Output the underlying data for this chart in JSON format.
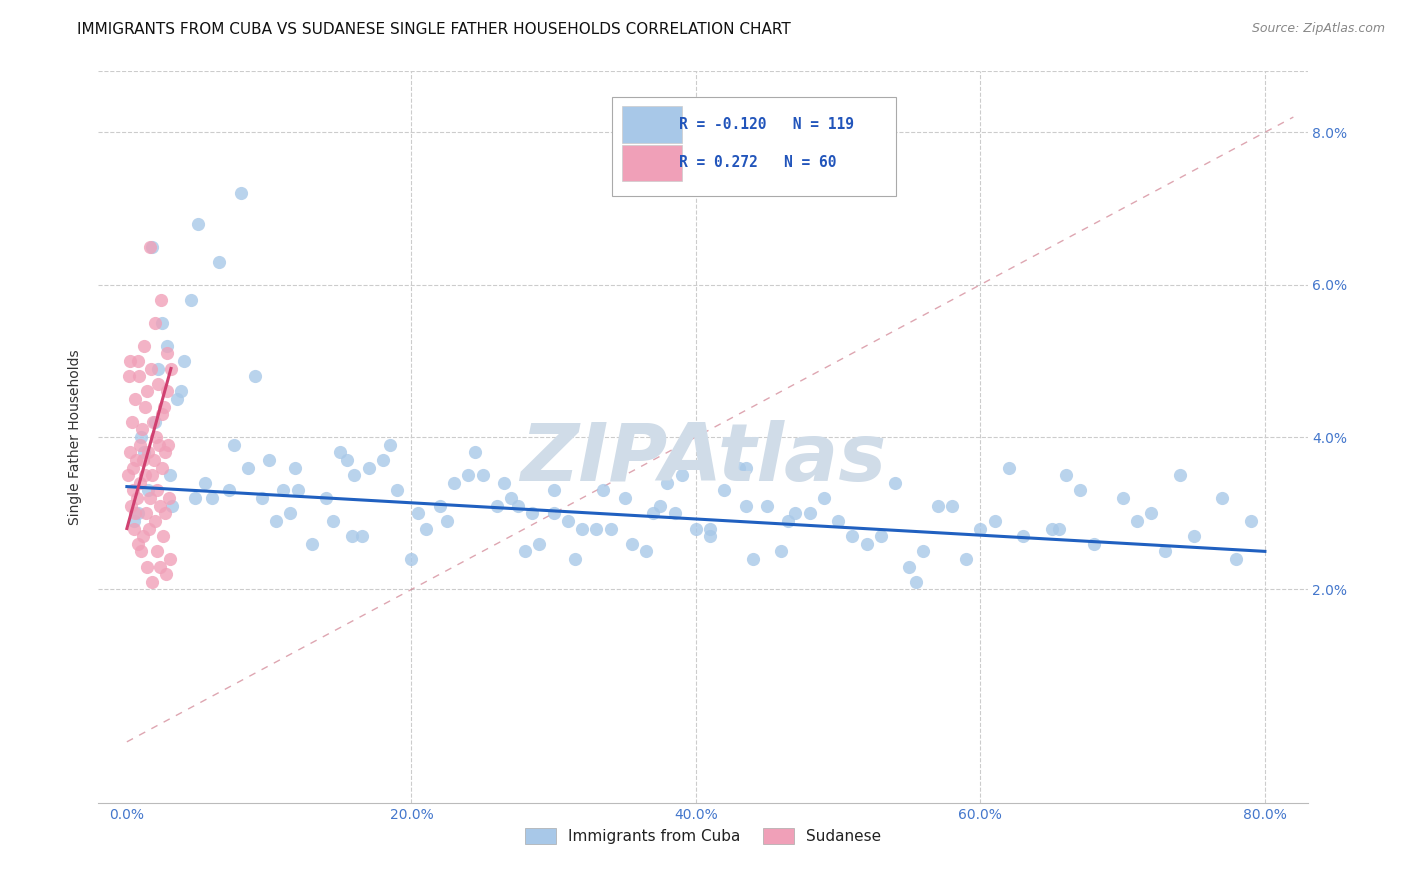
{
  "title": "IMMIGRANTS FROM CUBA VS SUDANESE SINGLE FATHER HOUSEHOLDS CORRELATION CHART",
  "source": "Source: ZipAtlas.com",
  "ylabel": "Single Father Households",
  "x_tick_labels": [
    "0.0%",
    "20.0%",
    "40.0%",
    "60.0%",
    "80.0%"
  ],
  "x_tick_vals": [
    0.0,
    20.0,
    40.0,
    60.0,
    80.0
  ],
  "y_tick_labels": [
    "2.0%",
    "4.0%",
    "6.0%",
    "8.0%"
  ],
  "y_tick_vals": [
    2.0,
    4.0,
    6.0,
    8.0
  ],
  "xlim": [
    -2.0,
    83.0
  ],
  "ylim": [
    -0.8,
    8.8
  ],
  "legend_labels": [
    "Immigrants from Cuba",
    "Sudanese"
  ],
  "legend_r_vals": [
    "-0.120",
    "0.272"
  ],
  "legend_n_vals": [
    "119",
    "60"
  ],
  "blue_color": "#a8c8e8",
  "pink_color": "#f0a0b8",
  "blue_line_color": "#2060c0",
  "pink_line_color": "#d04070",
  "diag_line_color": "#d08090",
  "title_fontsize": 11,
  "watermark_text": "ZIPAtlas",
  "watermark_color": "#d0dce8",
  "blue_scatter_x": [
    1.5,
    2.5,
    3.5,
    5.0,
    8.0,
    0.8,
    1.2,
    2.0,
    3.0,
    4.5,
    6.5,
    9.0,
    1.8,
    2.8,
    4.0,
    5.5,
    7.5,
    10.0,
    0.5,
    1.0,
    2.2,
    3.8,
    6.0,
    8.5,
    11.0,
    13.0,
    15.0,
    12.0,
    17.0,
    10.5,
    14.0,
    18.0,
    20.0,
    11.5,
    22.0,
    16.5,
    24.0,
    14.5,
    19.0,
    21.0,
    25.0,
    27.0,
    30.0,
    23.0,
    32.0,
    15.5,
    18.5,
    26.0,
    28.0,
    33.0,
    35.0,
    38.0,
    41.0,
    30.0,
    43.0,
    31.0,
    37.0,
    39.0,
    45.0,
    29.0,
    34.0,
    42.0,
    47.0,
    50.0,
    44.0,
    37.5,
    53.0,
    49.0,
    56.0,
    41.0,
    58.0,
    52.0,
    61.0,
    55.0,
    63.0,
    46.0,
    65.0,
    59.0,
    68.0,
    71.0,
    73.0,
    75.0,
    78.0,
    62.0,
    65.5,
    67.0,
    72.0,
    74.0,
    77.0,
    79.0,
    54.0,
    57.0,
    60.0,
    66.0,
    70.0,
    55.5,
    48.0,
    51.0,
    43.5,
    40.0,
    3.2,
    4.8,
    7.2,
    16.0,
    20.5,
    35.5,
    22.5,
    26.5,
    15.8,
    33.5,
    11.8,
    24.5,
    28.5,
    36.5,
    9.5,
    46.5,
    31.5,
    43.5,
    38.5,
    27.5
  ],
  "blue_scatter_y": [
    3.3,
    5.5,
    4.5,
    6.8,
    7.2,
    3.0,
    3.8,
    4.2,
    3.5,
    5.8,
    6.3,
    4.8,
    6.5,
    5.2,
    5.0,
    3.4,
    3.9,
    3.7,
    2.9,
    4.0,
    4.9,
    4.6,
    3.2,
    3.6,
    3.3,
    2.6,
    3.8,
    3.3,
    3.6,
    2.9,
    3.2,
    3.7,
    2.4,
    3.0,
    3.1,
    2.7,
    3.5,
    2.9,
    3.3,
    2.8,
    3.5,
    3.2,
    3.0,
    3.4,
    2.8,
    3.7,
    3.9,
    3.1,
    2.5,
    2.8,
    3.2,
    3.4,
    2.7,
    3.3,
    3.6,
    2.9,
    3.0,
    3.5,
    3.1,
    2.6,
    2.8,
    3.3,
    3.0,
    2.9,
    2.4,
    3.1,
    2.7,
    3.2,
    2.5,
    2.8,
    3.1,
    2.6,
    2.9,
    2.3,
    2.7,
    2.5,
    2.8,
    2.4,
    2.6,
    2.9,
    2.5,
    2.7,
    2.4,
    3.6,
    2.8,
    3.3,
    3.0,
    3.5,
    3.2,
    2.9,
    3.4,
    3.1,
    2.8,
    3.5,
    3.2,
    2.1,
    3.0,
    2.7,
    3.1,
    2.8,
    3.1,
    3.2,
    3.3,
    3.5,
    3.0,
    2.6,
    2.9,
    3.4,
    2.7,
    3.3,
    3.6,
    3.8,
    3.0,
    2.5,
    3.2,
    2.9,
    2.4,
    3.6,
    3.0,
    3.1
  ],
  "pink_scatter_x": [
    0.1,
    0.15,
    0.2,
    0.25,
    0.3,
    0.35,
    0.4,
    0.45,
    0.5,
    0.55,
    0.6,
    0.65,
    0.7,
    0.75,
    0.8,
    0.85,
    0.9,
    0.95,
    1.0,
    1.05,
    1.1,
    1.15,
    1.2,
    1.25,
    1.3,
    1.35,
    1.4,
    1.45,
    1.5,
    1.55,
    1.6,
    1.65,
    1.7,
    1.75,
    1.8,
    1.85,
    1.9,
    1.95,
    2.0,
    2.05,
    2.1,
    2.15,
    2.2,
    2.25,
    2.3,
    2.35,
    2.4,
    2.45,
    2.5,
    2.55,
    2.6,
    2.65,
    2.7,
    2.75,
    2.8,
    2.85,
    2.9,
    2.95,
    3.0,
    3.1
  ],
  "pink_scatter_y": [
    3.5,
    4.8,
    3.8,
    5.0,
    3.1,
    4.2,
    3.6,
    3.3,
    2.8,
    4.5,
    3.0,
    3.7,
    3.2,
    2.6,
    5.0,
    4.8,
    3.4,
    3.9,
    2.5,
    4.1,
    3.7,
    2.7,
    5.2,
    4.4,
    3.5,
    3.0,
    2.3,
    4.6,
    3.8,
    2.8,
    6.5,
    3.2,
    4.9,
    3.5,
    2.1,
    4.2,
    3.7,
    2.9,
    5.5,
    4.0,
    3.3,
    2.5,
    4.7,
    3.9,
    3.1,
    2.3,
    5.8,
    4.3,
    3.6,
    2.7,
    4.4,
    3.8,
    3.0,
    2.2,
    5.1,
    4.6,
    3.9,
    3.2,
    2.4,
    4.9
  ],
  "blue_trend_x": [
    0.0,
    80.0
  ],
  "blue_trend_y": [
    3.35,
    2.5
  ],
  "pink_trend_x": [
    0.0,
    3.1
  ],
  "pink_trend_y": [
    2.8,
    4.9
  ]
}
